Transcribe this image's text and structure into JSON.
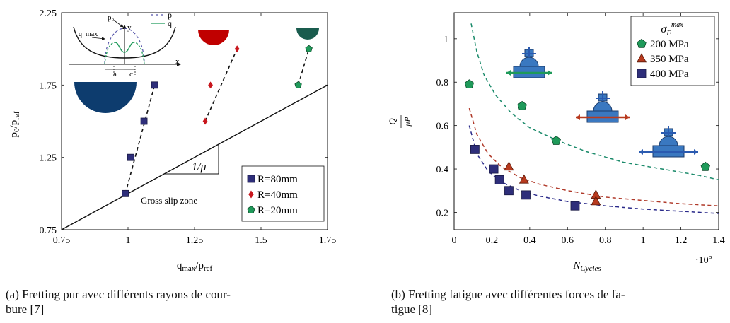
{
  "captions": {
    "left": "(a) Fretting pur avec différents rayons de courbure [7]",
    "left_line1": "(a) Fretting pur avec différents rayons de cour-",
    "left_line2": "bure [7]",
    "right_line1": "(b) Fretting fatigue avec différentes forces de fa-",
    "right_line2": "tigue [8]"
  },
  "chart_data": [
    {
      "type": "scatter",
      "xlabel": "q_max/p_ref",
      "ylabel": "p0/p_ref",
      "xlim": [
        0.75,
        1.75
      ],
      "ylim": [
        0.75,
        2.25
      ],
      "xticks": [
        "0.75",
        "1",
        "1.25",
        "1.5",
        "1.75"
      ],
      "yticks": [
        "0.75",
        "1.25",
        "1.75",
        "2.25"
      ],
      "legend_position": "bottom-right",
      "series": [
        {
          "name": "R=80mm",
          "marker": "square",
          "color": "#2e2e7a",
          "x": [
            0.99,
            1.01,
            1.06,
            1.1
          ],
          "y": [
            1.0,
            1.25,
            1.5,
            1.75
          ],
          "trend": [
            [
              0.99,
              1.0
            ],
            [
              1.1,
              1.75
            ]
          ]
        },
        {
          "name": "R=40mm",
          "marker": "diamond",
          "color": "#c8161d",
          "x": [
            1.29,
            1.31,
            1.41
          ],
          "y": [
            1.5,
            1.75,
            2.0
          ],
          "trend": [
            [
              1.29,
              1.5
            ],
            [
              1.41,
              2.0
            ]
          ]
        },
        {
          "name": "R=20mm",
          "marker": "pentagon",
          "color": "#1f9a5a",
          "x": [
            1.64,
            1.68
          ],
          "y": [
            1.75,
            2.0
          ],
          "trend": [
            [
              1.64,
              1.75
            ],
            [
              1.68,
              2.0
            ]
          ]
        }
      ],
      "boundary_line": [
        [
          0.75,
          0.75
        ],
        [
          1.75,
          1.75
        ]
      ],
      "slope_label": "1/μ",
      "zone_label": "Gross slip zone",
      "inset_labels": {
        "p": "p",
        "q": "q",
        "p0": "p₀",
        "y": "y",
        "qmax": "q_max",
        "x": "x",
        "a": "a",
        "c": "c"
      },
      "colors": {
        "navy": "#0d3c6e",
        "red": "#c00000",
        "teal": "#1a5c4e"
      }
    },
    {
      "type": "scatter",
      "xlabel": "N_Cycles",
      "ylabel": "Q/μP",
      "x_multiplier": "·10^5",
      "xlim": [
        0,
        1.4
      ],
      "ylim": [
        0.12,
        1.12
      ],
      "xticks": [
        "0",
        "0.2",
        "0.4",
        "0.6",
        "0.8",
        "1",
        "1.2",
        "1.4"
      ],
      "yticks": [
        "0.2",
        "0.4",
        "0.6",
        "0.8",
        "1"
      ],
      "legend_title": "σ_F^max",
      "legend_position": "top-right",
      "series": [
        {
          "name": "200 MPa",
          "marker": "pentagon",
          "color": "#1f9a5a",
          "x": [
            0.08,
            0.36,
            0.54,
            1.33
          ],
          "y": [
            0.79,
            0.69,
            0.53,
            0.41
          ]
        },
        {
          "name": "350 MPa",
          "marker": "triangle",
          "color": "#b83a1e",
          "x": [
            0.29,
            0.37,
            0.75,
            0.75
          ],
          "y": [
            0.41,
            0.35,
            0.28,
            0.25
          ]
        },
        {
          "name": "400 MPa",
          "marker": "square",
          "color": "#2e2e7a",
          "x": [
            0.11,
            0.21,
            0.24,
            0.29,
            0.38,
            0.64
          ],
          "y": [
            0.49,
            0.4,
            0.35,
            0.3,
            0.28,
            0.23
          ]
        }
      ],
      "fit_curves": [
        {
          "color": "#1a8a6a",
          "x": [
            0.09,
            0.12,
            0.16,
            0.22,
            0.3,
            0.4,
            0.55,
            0.7,
            0.9,
            1.1,
            1.3,
            1.4
          ],
          "y": [
            1.07,
            0.94,
            0.83,
            0.74,
            0.66,
            0.59,
            0.53,
            0.48,
            0.43,
            0.4,
            0.37,
            0.35
          ]
        },
        {
          "color": "#b03a2a",
          "x": [
            0.08,
            0.12,
            0.18,
            0.25,
            0.35,
            0.45,
            0.6,
            0.8,
            1.0,
            1.2,
            1.4
          ],
          "y": [
            0.68,
            0.56,
            0.47,
            0.41,
            0.36,
            0.33,
            0.3,
            0.27,
            0.255,
            0.24,
            0.23
          ]
        },
        {
          "color": "#2a2a8a",
          "x": [
            0.08,
            0.12,
            0.18,
            0.25,
            0.35,
            0.45,
            0.6,
            0.8,
            1.0,
            1.2,
            1.4
          ],
          "y": [
            0.6,
            0.47,
            0.39,
            0.34,
            0.3,
            0.275,
            0.25,
            0.23,
            0.215,
            0.205,
            0.195
          ]
        }
      ],
      "icon_colors": {
        "fill": "#3a78c0",
        "arrows": [
          "#1f9a5a",
          "#b83a1e",
          "#2a5ab0"
        ]
      }
    }
  ]
}
